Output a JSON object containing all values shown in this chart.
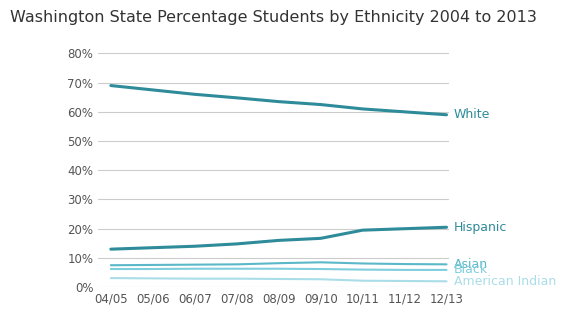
{
  "title": "Washington State Percentage Students by Ethnicity 2004 to 2013",
  "x_labels": [
    "04/05",
    "05/06",
    "06/07",
    "07/08",
    "08/09",
    "09/10",
    "10/11",
    "11/12",
    "12/13"
  ],
  "series": {
    "White": [
      0.69,
      0.675,
      0.66,
      0.648,
      0.635,
      0.625,
      0.61,
      0.6,
      0.59
    ],
    "Hispanic": [
      0.13,
      0.135,
      0.14,
      0.148,
      0.16,
      0.167,
      0.195,
      0.2,
      0.205
    ],
    "Asian": [
      0.075,
      0.076,
      0.077,
      0.078,
      0.082,
      0.085,
      0.081,
      0.079,
      0.078
    ],
    "Black": [
      0.062,
      0.062,
      0.063,
      0.063,
      0.063,
      0.062,
      0.06,
      0.059,
      0.059
    ],
    "American Indian": [
      0.031,
      0.03,
      0.029,
      0.029,
      0.028,
      0.027,
      0.022,
      0.021,
      0.02
    ]
  },
  "colors": {
    "White": "#2E8B9A",
    "Hispanic": "#2E8B9A",
    "Asian": "#5BB8C9",
    "Black": "#7ECEDD",
    "American Indian": "#AADDE8"
  },
  "line_widths": {
    "White": 2.2,
    "Hispanic": 2.2,
    "Asian": 1.5,
    "Black": 1.5,
    "American Indian": 1.5
  },
  "ylim": [
    0.0,
    0.86
  ],
  "yticks": [
    0.0,
    0.1,
    0.2,
    0.3,
    0.4,
    0.5,
    0.6,
    0.7,
    0.8
  ],
  "ytick_labels": [
    "0%",
    "10%",
    "20%",
    "30%",
    "40%",
    "50%",
    "60%",
    "70%",
    "80%"
  ],
  "background_color": "#ffffff",
  "title_fontsize": 11.5,
  "tick_fontsize": 8.5,
  "label_fontsize": 9,
  "label_color": {
    "White": "#2E8B9A",
    "Hispanic": "#2E8B9A",
    "Asian": "#5BB8C9",
    "Black": "#7ECEDD",
    "American Indian": "#AADDE8"
  }
}
